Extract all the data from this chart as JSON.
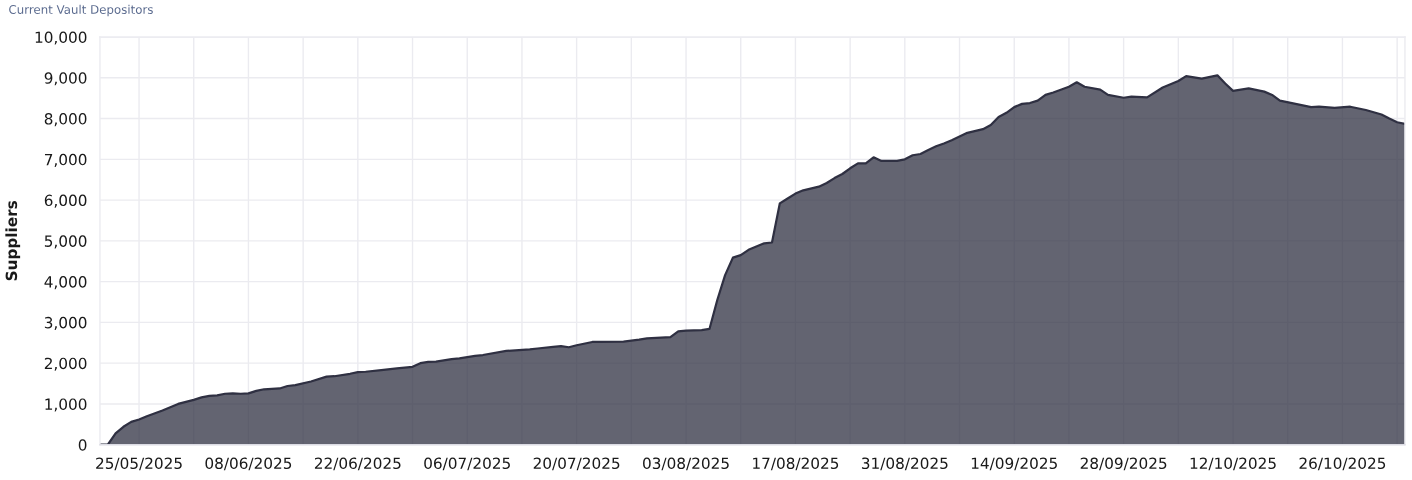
{
  "chart_data": {
    "type": "area",
    "title": "Current Vault Depositors",
    "ylabel": "Suppliers",
    "x": [
      "2025-05-20",
      "2025-05-21",
      "2025-05-22",
      "2025-05-23",
      "2025-05-24",
      "2025-05-25",
      "2025-05-26",
      "2025-05-28",
      "2025-05-30",
      "2025-05-31",
      "2025-06-01",
      "2025-06-02",
      "2025-06-03",
      "2025-06-04",
      "2025-06-05",
      "2025-06-06",
      "2025-06-07",
      "2025-06-08",
      "2025-06-09",
      "2025-06-10",
      "2025-06-12",
      "2025-06-13",
      "2025-06-14",
      "2025-06-16",
      "2025-06-18",
      "2025-06-19",
      "2025-06-21",
      "2025-06-22",
      "2025-06-23",
      "2025-06-25",
      "2025-06-27",
      "2025-06-29",
      "2025-06-30",
      "2025-07-01",
      "2025-07-02",
      "2025-07-04",
      "2025-07-05",
      "2025-07-07",
      "2025-07-08",
      "2025-07-11",
      "2025-07-14",
      "2025-07-15",
      "2025-07-17",
      "2025-07-18",
      "2025-07-19",
      "2025-07-20",
      "2025-07-22",
      "2025-07-23",
      "2025-07-26",
      "2025-07-28",
      "2025-07-29",
      "2025-08-01",
      "2025-08-02",
      "2025-08-03",
      "2025-08-05",
      "2025-08-06",
      "2025-08-07",
      "2025-08-08",
      "2025-08-09",
      "2025-08-10",
      "2025-08-11",
      "2025-08-12",
      "2025-08-13",
      "2025-08-14",
      "2025-08-15",
      "2025-08-16",
      "2025-08-17",
      "2025-08-18",
      "2025-08-20",
      "2025-08-21",
      "2025-08-22",
      "2025-08-23",
      "2025-08-24",
      "2025-08-25",
      "2025-08-26",
      "2025-08-27",
      "2025-08-28",
      "2025-08-30",
      "2025-08-31",
      "2025-09-01",
      "2025-09-02",
      "2025-09-03",
      "2025-09-04",
      "2025-09-05",
      "2025-09-06",
      "2025-09-08",
      "2025-09-10",
      "2025-09-11",
      "2025-09-12",
      "2025-09-13",
      "2025-09-14",
      "2025-09-15",
      "2025-09-16",
      "2025-09-17",
      "2025-09-18",
      "2025-09-19",
      "2025-09-21",
      "2025-09-22",
      "2025-09-23",
      "2025-09-25",
      "2025-09-26",
      "2025-09-28",
      "2025-09-29",
      "2025-10-01",
      "2025-10-03",
      "2025-10-04",
      "2025-10-05",
      "2025-10-06",
      "2025-10-08",
      "2025-10-10",
      "2025-10-11",
      "2025-10-12",
      "2025-10-14",
      "2025-10-16",
      "2025-10-17",
      "2025-10-18",
      "2025-10-20",
      "2025-10-22",
      "2025-10-23",
      "2025-10-25",
      "2025-10-27",
      "2025-10-29",
      "2025-10-31",
      "2025-11-01",
      "2025-11-02",
      "2025-11-03"
    ],
    "series": [
      {
        "color": "#2f3042",
        "values": [
          0,
          0,
          280,
          440,
          560,
          620,
          700,
          840,
          1000,
          1050,
          1100,
          1160,
          1200,
          1210,
          1250,
          1260,
          1250,
          1260,
          1320,
          1360,
          1380,
          1440,
          1460,
          1550,
          1670,
          1680,
          1740,
          1780,
          1790,
          1830,
          1870,
          1910,
          2000,
          2030,
          2040,
          2100,
          2120,
          2180,
          2200,
          2300,
          2340,
          2360,
          2400,
          2420,
          2390,
          2440,
          2520,
          2520,
          2530,
          2580,
          2610,
          2640,
          2780,
          2800,
          2810,
          2840,
          3550,
          4160,
          4590,
          4650,
          4780,
          4860,
          4940,
          4960,
          5920,
          6040,
          6160,
          6240,
          6330,
          6420,
          6540,
          6640,
          6780,
          6900,
          6900,
          7050,
          6960,
          6960,
          7000,
          7100,
          7130,
          7230,
          7320,
          7390,
          7470,
          7650,
          7740,
          7840,
          8040,
          8140,
          8280,
          8360,
          8380,
          8440,
          8580,
          8640,
          8780,
          8890,
          8780,
          8710,
          8580,
          8510,
          8540,
          8520,
          8760,
          8840,
          8920,
          9040,
          8980,
          9060,
          8860,
          8680,
          8740,
          8660,
          8580,
          8440,
          8360,
          8280,
          8290,
          8260,
          8290,
          8210,
          8100,
          8000,
          7910,
          7870
        ]
      }
    ],
    "xlim": [
      "2025-05-20",
      "2025-11-03"
    ],
    "xticks": [
      {
        "value": "2025-05-25",
        "label": "25/05/2025"
      },
      {
        "value": "2025-06-01",
        "label": null
      },
      {
        "value": "2025-06-08",
        "label": "08/06/2025"
      },
      {
        "value": "2025-06-15",
        "label": null
      },
      {
        "value": "2025-06-22",
        "label": "22/06/2025"
      },
      {
        "value": "2025-06-29",
        "label": null
      },
      {
        "value": "2025-07-06",
        "label": "06/07/2025"
      },
      {
        "value": "2025-07-13",
        "label": null
      },
      {
        "value": "2025-07-20",
        "label": "20/07/2025"
      },
      {
        "value": "2025-07-27",
        "label": null
      },
      {
        "value": "2025-08-03",
        "label": "03/08/2025"
      },
      {
        "value": "2025-08-10",
        "label": null
      },
      {
        "value": "2025-08-17",
        "label": "17/08/2025"
      },
      {
        "value": "2025-08-24",
        "label": null
      },
      {
        "value": "2025-08-31",
        "label": "31/08/2025"
      },
      {
        "value": "2025-09-07",
        "label": null
      },
      {
        "value": "2025-09-14",
        "label": "14/09/2025"
      },
      {
        "value": "2025-09-21",
        "label": null
      },
      {
        "value": "2025-09-28",
        "label": "28/09/2025"
      },
      {
        "value": "2025-10-05",
        "label": null
      },
      {
        "value": "2025-10-12",
        "label": "12/10/2025"
      },
      {
        "value": "2025-10-19",
        "label": null
      },
      {
        "value": "2025-10-26",
        "label": "26/10/2025"
      },
      {
        "value": "2025-11-02",
        "label": null
      }
    ],
    "ylim": [
      0,
      10000
    ],
    "yticks": [
      0,
      {
        "value": 1000,
        "label": "1,000"
      },
      {
        "value": 2000,
        "label": "2,000"
      },
      {
        "value": 3000,
        "label": "3,000"
      },
      {
        "value": 4000,
        "label": "4,000"
      },
      {
        "value": 5000,
        "label": "5,000"
      },
      {
        "value": 6000,
        "label": "6,000"
      },
      {
        "value": 7000,
        "label": "7,000"
      },
      {
        "value": 8000,
        "label": "8,000"
      },
      {
        "value": 9000,
        "label": "9,000"
      },
      {
        "value": 10000,
        "label": "10,000"
      }
    ],
    "grid": true
  }
}
